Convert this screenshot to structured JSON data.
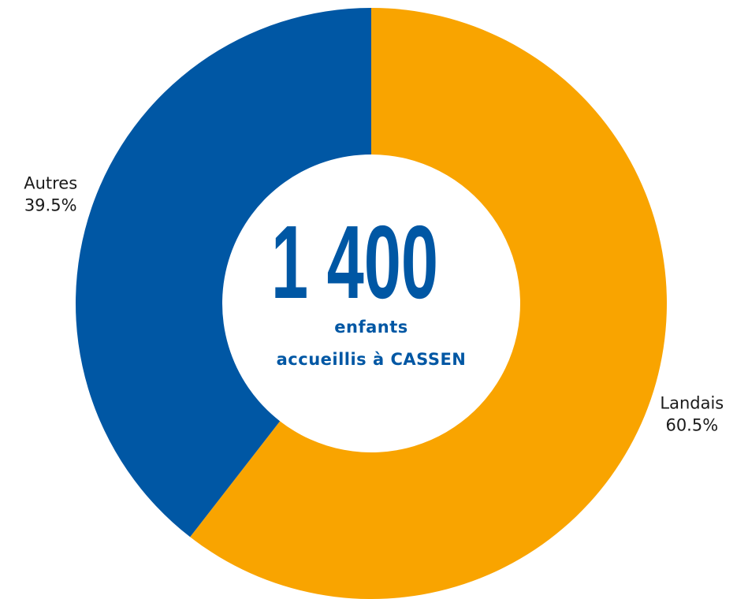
{
  "chart_data": {
    "type": "donut",
    "categories": [
      "Landais",
      "Autres"
    ],
    "values": [
      60.5,
      39.5
    ],
    "value_labels": [
      "60.5%",
      "39.5%"
    ],
    "colors": [
      "#f9a400",
      "#0057a4"
    ],
    "center_label": "1 400",
    "center_caption": [
      "enfants",
      "accueillis à CASSEN"
    ]
  }
}
